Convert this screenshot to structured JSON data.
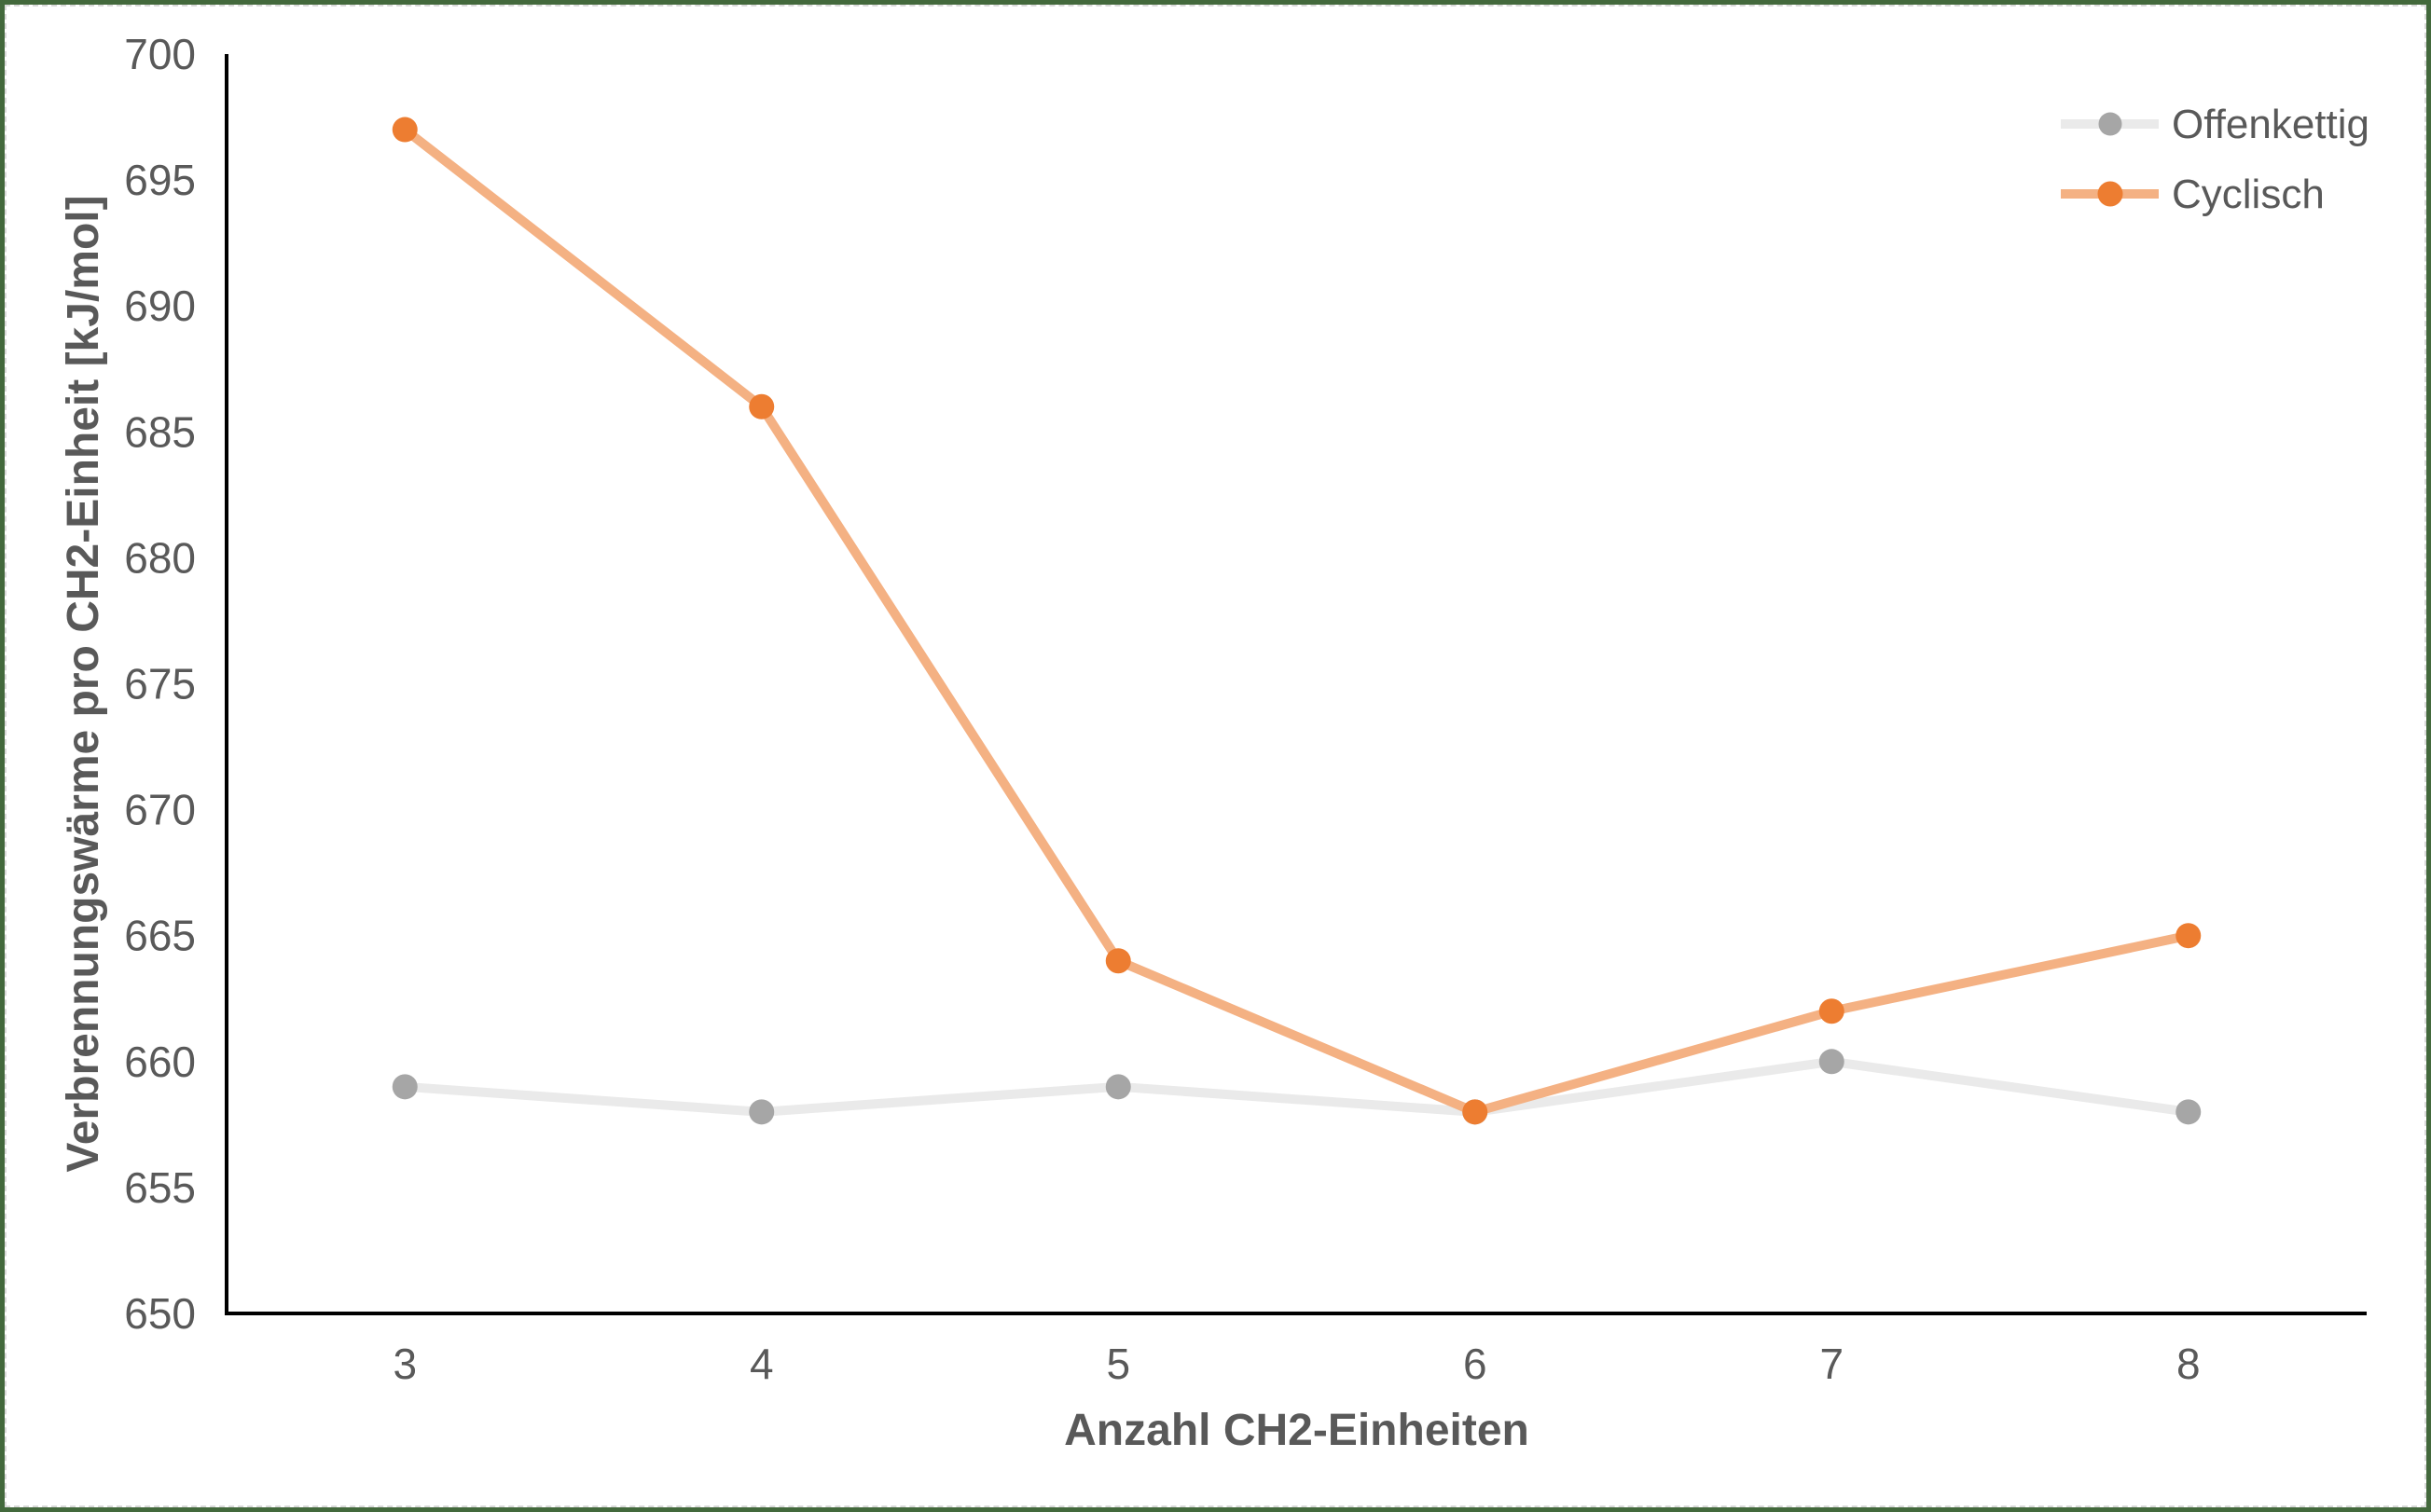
{
  "frame": {
    "border_color": "#43693c",
    "inner_dashed_border_color": "#d9d9d9"
  },
  "chart_data": {
    "type": "line",
    "categories": [
      "3",
      "4",
      "5",
      "6",
      "7",
      "8"
    ],
    "series": [
      {
        "name": "Offenkettig",
        "values": [
          659,
          658,
          659,
          658,
          660,
          658
        ],
        "line_color": "#eaeaea",
        "marker_color": "#a6a6a6"
      },
      {
        "name": "Cyclisch",
        "values": [
          697,
          686,
          664,
          658,
          662,
          665
        ],
        "line_color": "#f4b183",
        "marker_color": "#ed7d31"
      }
    ],
    "title": "",
    "xlabel": "Anzahl CH2-Einheiten",
    "ylabel": "Verbrennungswärme pro CH2-Einheit [kJ/mol]",
    "ylim": [
      650,
      700
    ],
    "ytick_step": 5,
    "ytick_labels": [
      "650",
      "655",
      "660",
      "665",
      "670",
      "675",
      "680",
      "685",
      "690",
      "695",
      "700"
    ],
    "grid": false,
    "legend_position": "top-right",
    "text_color": "#595959",
    "axis_line_color": "#000000"
  }
}
